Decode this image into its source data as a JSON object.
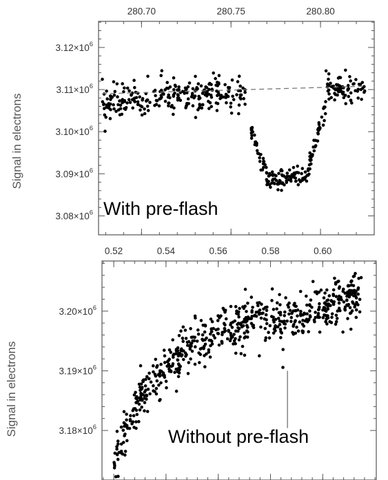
{
  "chart_data": [
    {
      "type": "scatter",
      "annotation": "With pre-flash",
      "ylabel": "Signal in electrons",
      "x_ticks": [
        "280.70",
        "280.75",
        "280.80"
      ],
      "xlim": [
        280.676,
        280.83
      ],
      "ylim": [
        3075500.0,
        3126200.0
      ],
      "y_ticks": [
        {
          "value": 3080000.0,
          "mantissa": "3.08",
          "base": "×10",
          "exp": "6"
        },
        {
          "value": 3090000.0,
          "mantissa": "3.09",
          "base": "×10",
          "exp": "6"
        },
        {
          "value": 3100000.0,
          "mantissa": "3.10",
          "base": "×10",
          "exp": "6"
        },
        {
          "value": 3110000.0,
          "mantissa": "3.11",
          "base": "×10",
          "exp": "6"
        },
        {
          "value": 3120000.0,
          "mantissa": "3.12",
          "base": "×10",
          "exp": "6"
        }
      ],
      "baseline_fit": {
        "x": [
          280.678,
          280.825
        ],
        "y": [
          3109000.0,
          3110800.0
        ],
        "style": "dashed"
      },
      "transit_profile": {
        "out_of_transit_before": {
          "x": [
            280.678,
            280.758
          ],
          "y_start": 3107000.0,
          "y_end": 3109500.0,
          "scatter": 2000
        },
        "ingress": {
          "x": [
            280.758,
            280.77
          ],
          "y": [
            3104000.0,
            3090000.0
          ]
        },
        "in_transit": {
          "x": [
            280.77,
            280.792
          ],
          "y": 3089000.0,
          "scatter": 1300
        },
        "egress": {
          "x": [
            280.792,
            280.803
          ],
          "y": [
            3090000.0,
            3106000.0
          ]
        },
        "out_of_transit_after": {
          "x": [
            280.803,
            280.825
          ],
          "y": 3110000.0,
          "scatter": 1600
        },
        "gap": [
          280.758,
          280.761
        ]
      },
      "n_points": 500,
      "grid": false,
      "marker_color": "#000000"
    },
    {
      "type": "scatter",
      "annotation": "Without pre-flash",
      "ylabel": "Signal in electrons",
      "x_ticks": [
        "0.52",
        "0.54",
        "0.56",
        "0.58",
        "0.60"
      ],
      "xlim": [
        0.5155,
        0.6205
      ],
      "ylim": [
        3171700.0,
        3208400.0
      ],
      "y_ticks": [
        {
          "value": 3180000.0,
          "mantissa": "3.18",
          "base": "×10",
          "exp": "6"
        },
        {
          "value": 3190000.0,
          "mantissa": "3.19",
          "base": "×10",
          "exp": "6"
        },
        {
          "value": 3200000.0,
          "mantissa": "3.20",
          "base": "×10",
          "exp": "6"
        }
      ],
      "trend": {
        "x": [
          0.52,
          0.525,
          0.53,
          0.535,
          0.54,
          0.545,
          0.55,
          0.555,
          0.56,
          0.565,
          0.57,
          0.575,
          0.58,
          0.585,
          0.59,
          0.595,
          0.6,
          0.605,
          0.61,
          0.615
        ],
        "y": [
          3174000.0,
          3181000.0,
          3185000.0,
          3188000.0,
          3190500.0,
          3192500.0,
          3194000.0,
          3195500.0,
          3196500.0,
          3197500.0,
          3198300.0,
          3199000.0,
          3198500.0,
          3198200.0,
          3199000.0,
          3199800.0,
          3201000.0,
          3202000.0,
          3202200.0,
          3202500.0
        ]
      },
      "scatter_sigma": 1900,
      "n_points": 640,
      "marker_line": {
        "x": 0.5865,
        "y": [
          3180400.0,
          3190000.0
        ]
      },
      "grid": false,
      "marker_color": "#000000"
    }
  ]
}
